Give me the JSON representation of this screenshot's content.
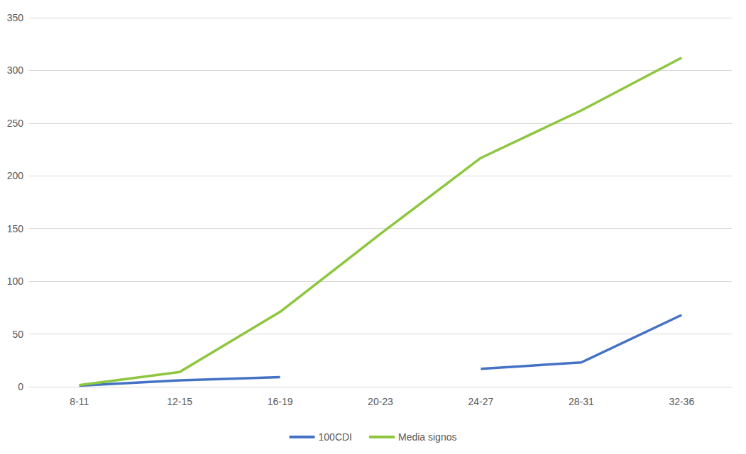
{
  "chart_data": {
    "type": "line",
    "categories": [
      "8-11",
      "12-15",
      "16-19",
      "20-23",
      "24-27",
      "28-31",
      "32-36"
    ],
    "series": [
      {
        "name": "100CDI",
        "color": "#4472c4",
        "values": [
          1,
          6,
          9,
          null,
          17,
          23,
          68
        ]
      },
      {
        "name": "Media signos",
        "color": "#8dc63f",
        "values": [
          1.5,
          14,
          71,
          145,
          217,
          262,
          312
        ]
      }
    ],
    "ylim": [
      0,
      350
    ],
    "yticks": [
      0,
      50,
      100,
      150,
      200,
      250,
      300,
      350
    ],
    "grid": true,
    "legend": "bottom"
  }
}
